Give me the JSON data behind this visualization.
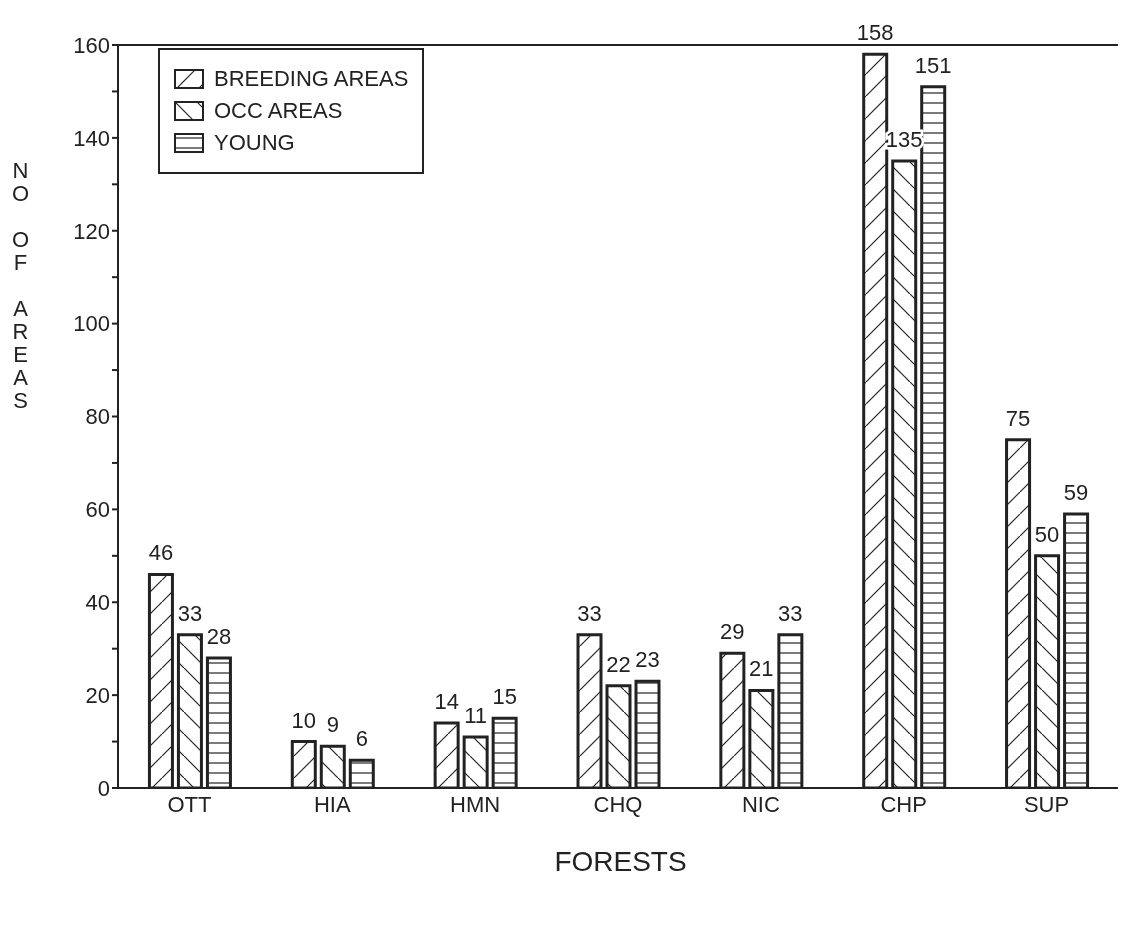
{
  "chart_data": {
    "type": "bar",
    "xlabel": "FORESTS",
    "ylabel": "NO OF AREAS",
    "categories": [
      "OTT",
      "HIA",
      "HMN",
      "CHQ",
      "NIC",
      "CHP",
      "SUP"
    ],
    "series": [
      {
        "name": "BREEDING AREAS",
        "color": "#222222",
        "values": [
          46,
          10,
          14,
          33,
          29,
          158,
          75
        ]
      },
      {
        "name": "OCC AREAS",
        "color": "#222222",
        "values": [
          33,
          9,
          11,
          22,
          21,
          135,
          50
        ]
      },
      {
        "name": "YOUNG",
        "color": "#222222",
        "values": [
          28,
          6,
          15,
          23,
          33,
          151,
          59
        ]
      }
    ],
    "ylim": [
      0,
      160
    ],
    "yticks": [
      0,
      {
        "value": 10,
        "label": null
      },
      20,
      {
        "value": 30,
        "label": null
      },
      40,
      {
        "value": 50,
        "label": null
      },
      60,
      {
        "value": 70,
        "label": null
      },
      80,
      {
        "value": 90,
        "label": null
      },
      100,
      {
        "value": 110,
        "label": null
      },
      120,
      {
        "value": 130,
        "label": null
      },
      140,
      {
        "value": 150,
        "label": null
      },
      160
    ],
    "data_labels": true,
    "legend": "top left",
    "grid": false
  }
}
